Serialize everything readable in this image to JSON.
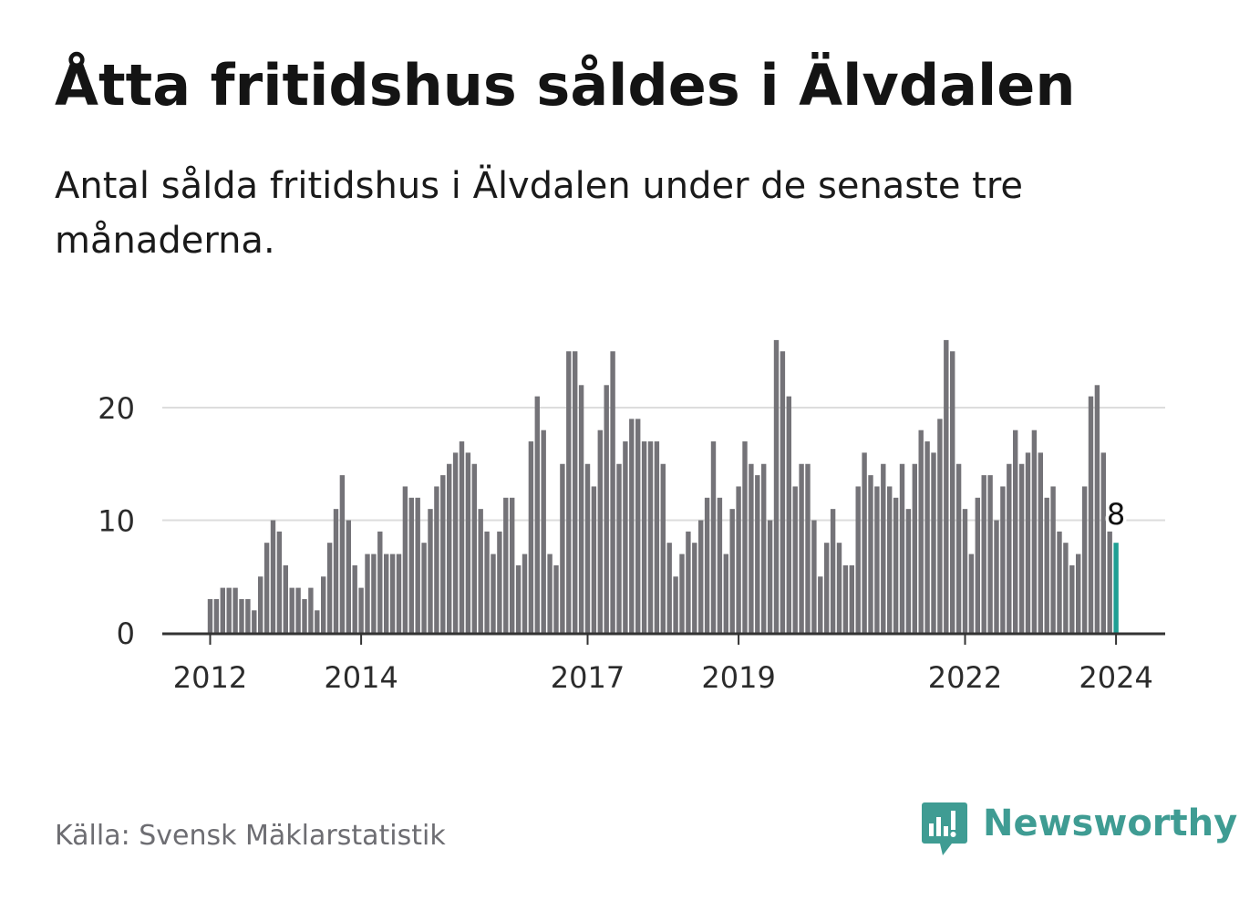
{
  "header": {
    "title": "Åtta fritidshus såldes i Älvdalen",
    "subtitle": "Antal sålda fritidshus i Älvdalen under de senaste tre månaderna."
  },
  "footer": {
    "source": "Källa: Svensk Mäklarstatistik",
    "brand": "Newsworthy",
    "brand_icon": "newsworthy-chart-logo-icon"
  },
  "colors": {
    "bar": "#747378",
    "highlight": "#1f9e93",
    "grid": "#dddddd",
    "axis": "#333333",
    "brand": "#3f9c93"
  },
  "chart_data": {
    "type": "bar",
    "title": "Åtta fritidshus såldes i Älvdalen",
    "xlabel": "",
    "ylabel": "",
    "ylim": [
      0,
      26
    ],
    "yticks": [
      0,
      10,
      20
    ],
    "grid": true,
    "period": "monthly, rolling three-month count",
    "x_start": "2012-01",
    "x_end": "2024-01",
    "xtick_labels": [
      {
        "label": "2012",
        "index": 0
      },
      {
        "label": "2014",
        "index": 24
      },
      {
        "label": "2017",
        "index": 60
      },
      {
        "label": "2019",
        "index": 84
      },
      {
        "label": "2022",
        "index": 120
      },
      {
        "label": "2024",
        "index": 144
      }
    ],
    "values": [
      3,
      3,
      4,
      4,
      4,
      3,
      3,
      2,
      5,
      8,
      10,
      9,
      6,
      4,
      4,
      3,
      4,
      2,
      5,
      8,
      11,
      14,
      10,
      6,
      4,
      7,
      7,
      9,
      7,
      7,
      7,
      13,
      12,
      12,
      8,
      11,
      13,
      14,
      15,
      16,
      17,
      16,
      15,
      11,
      9,
      7,
      9,
      12,
      12,
      6,
      7,
      17,
      21,
      18,
      7,
      6,
      15,
      25,
      25,
      22,
      15,
      13,
      18,
      22,
      25,
      15,
      17,
      19,
      19,
      17,
      17,
      17,
      15,
      8,
      5,
      7,
      9,
      8,
      10,
      12,
      17,
      12,
      7,
      11,
      13,
      17,
      15,
      14,
      15,
      10,
      26,
      25,
      21,
      13,
      15,
      15,
      10,
      5,
      8,
      11,
      8,
      6,
      6,
      13,
      16,
      14,
      13,
      15,
      13,
      12,
      15,
      11,
      15,
      18,
      17,
      16,
      19,
      26,
      25,
      15,
      11,
      7,
      12,
      14,
      14,
      10,
      13,
      15,
      18,
      15,
      16,
      18,
      16,
      12,
      13,
      9,
      8,
      6,
      7,
      13,
      21,
      22,
      16,
      9,
      8
    ],
    "highlight_index": 144,
    "highlight_label": "8"
  }
}
